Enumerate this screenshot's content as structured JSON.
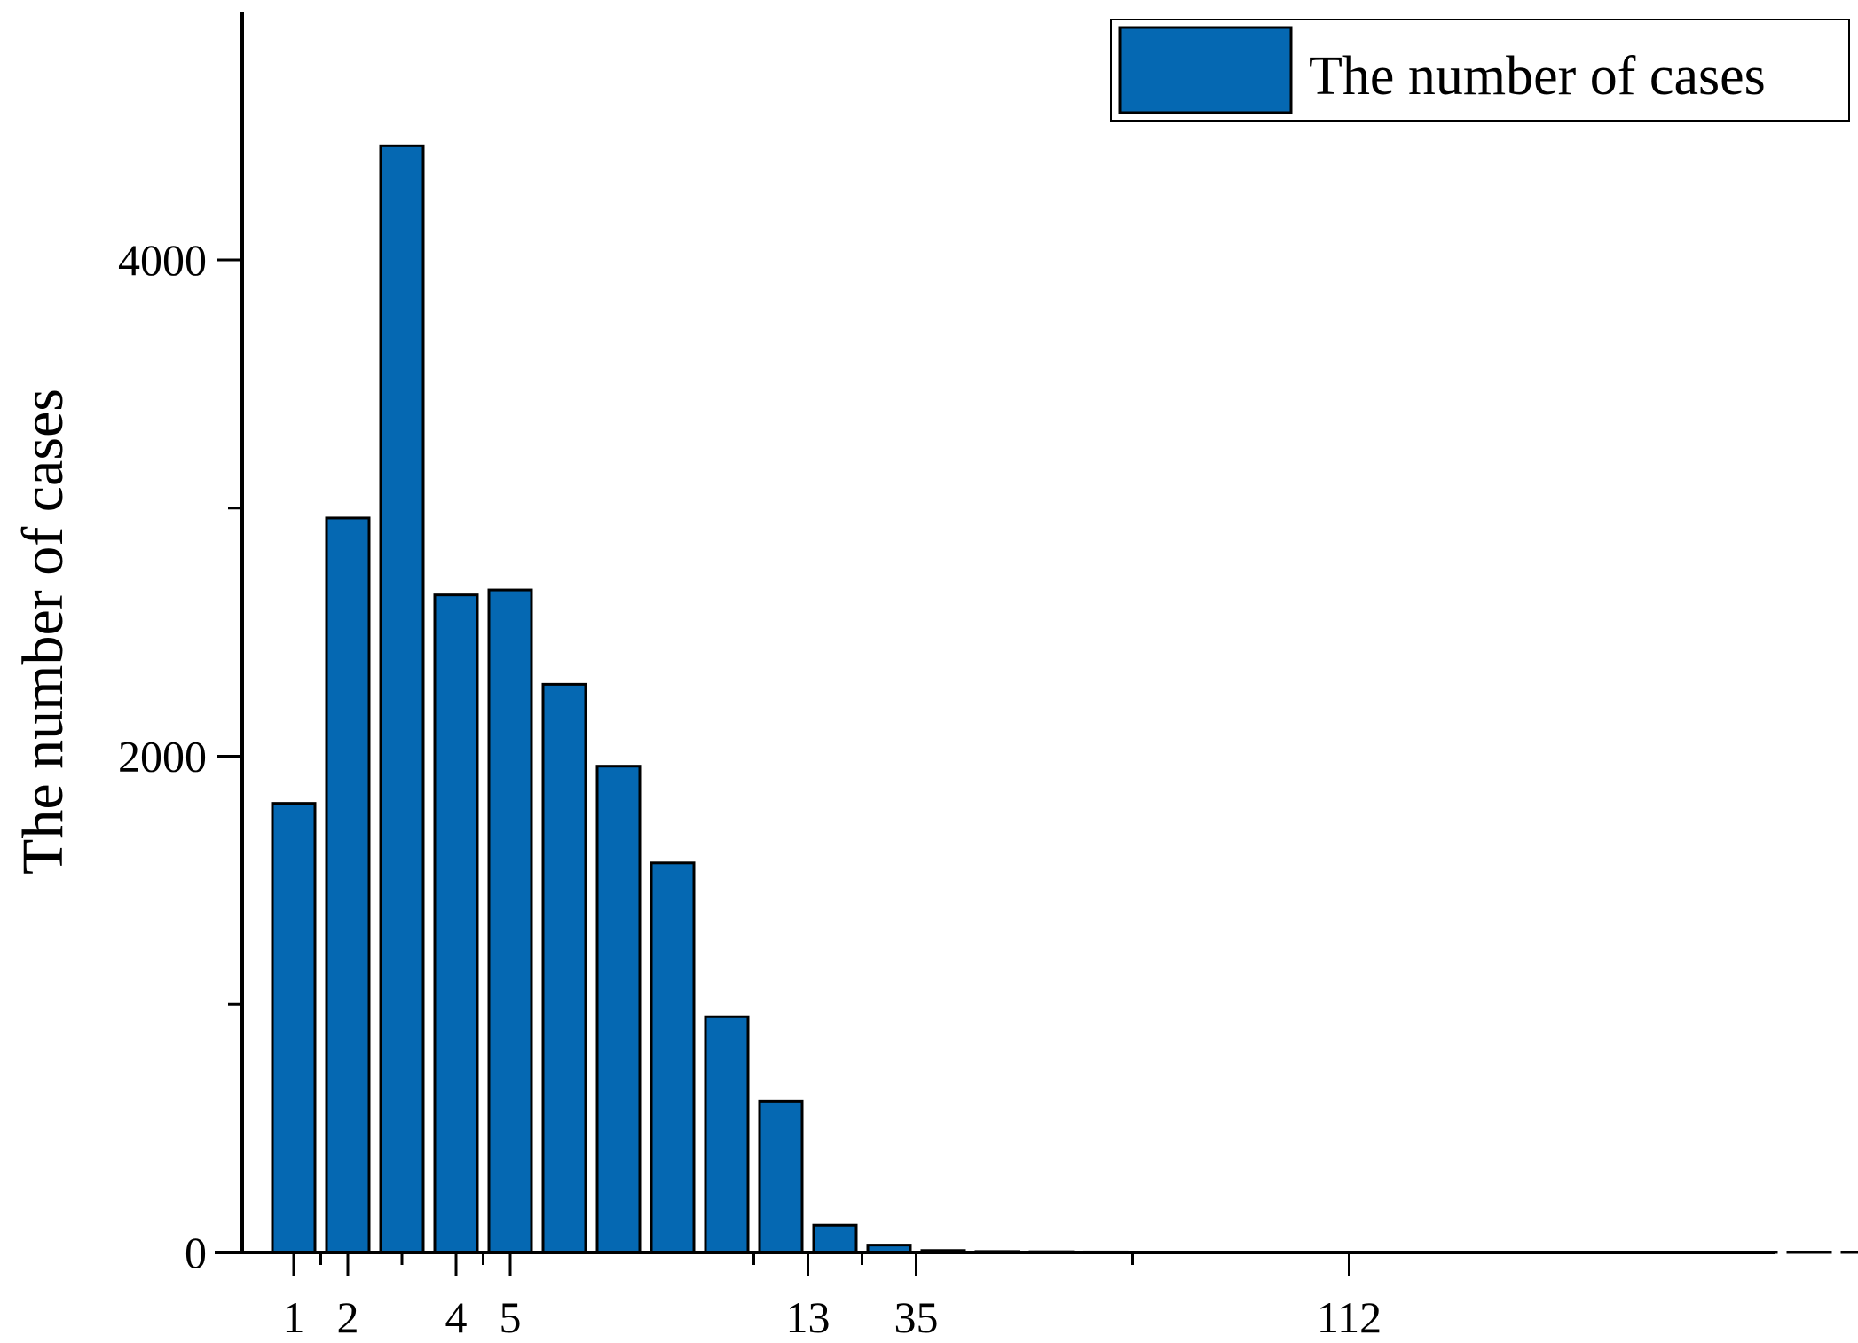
{
  "chart_data": {
    "type": "bar",
    "ylabel": "The number of cases",
    "xlabel": "",
    "legend": {
      "entries": [
        "The number of cases"
      ],
      "placement": "top-right"
    },
    "ylim": [
      0,
      4800
    ],
    "yticks": [
      0,
      2000,
      4000
    ],
    "y_minor_ticks": [
      1000,
      3000
    ],
    "x_tick_labels": [
      "1",
      "2",
      "4",
      "5",
      "13",
      "35",
      "112"
    ],
    "series": [
      {
        "name": "The number of cases",
        "values": [
          1810,
          2960,
          4460,
          2650,
          2670,
          2290,
          1960,
          1570,
          950,
          610,
          110,
          30,
          8,
          4,
          3,
          2,
          1,
          1,
          1,
          1,
          1,
          1,
          1,
          1,
          1,
          1,
          1,
          1,
          1,
          1
        ]
      }
    ],
    "x_ticks": [
      {
        "bar_index": 0.0,
        "label": "1"
      },
      {
        "bar_index": 0.5,
        "label": ""
      },
      {
        "bar_index": 1.0,
        "label": "2"
      },
      {
        "bar_index": 2.0,
        "label": ""
      },
      {
        "bar_index": 3.0,
        "label": "4"
      },
      {
        "bar_index": 3.5,
        "label": ""
      },
      {
        "bar_index": 4.0,
        "label": "5"
      },
      {
        "bar_index": 8.5,
        "label": ""
      },
      {
        "bar_index": 9.5,
        "label": "13"
      },
      {
        "bar_index": 10.5,
        "label": ""
      },
      {
        "bar_index": 11.5,
        "label": "35"
      },
      {
        "bar_index": 15.5,
        "label": ""
      },
      {
        "bar_index": 19.5,
        "label": "112"
      }
    ],
    "colors": {
      "bar": "#0568b2",
      "axis": "#000000"
    }
  }
}
